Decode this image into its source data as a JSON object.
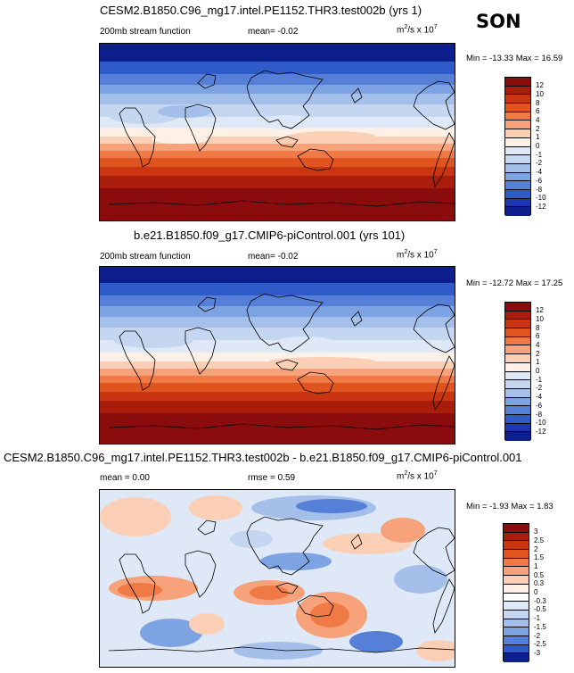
{
  "season": "SON",
  "panel_top": {
    "title": "CESM2.B1850.C96_mg17.intel.PE1152.THR3.test002b (yrs 1)",
    "left_label": "200mb stream function",
    "center_label": "mean=  -0.02",
    "units_base": "m",
    "units_exp1": "2",
    "units_mid": "/s x 10",
    "units_exp2": "7",
    "minmax": "Min = -13.33 Max =  16.59",
    "colorbar_labels": [
      "12",
      "10",
      "8",
      "6",
      "4",
      "2",
      "1",
      "0",
      "-1",
      "-2",
      "-4",
      "-6",
      "-8",
      "-10",
      "-12"
    ]
  },
  "panel_mid": {
    "title": "b.e21.B1850.f09_g17.CMIP6-piControl.001 (yrs 101)",
    "left_label": "200mb stream function",
    "center_label": "mean=  -0.02",
    "units_base": "m",
    "units_exp1": "2",
    "units_mid": "/s x 10",
    "units_exp2": "7",
    "minmax": "Min = -12.72 Max =  17.25",
    "colorbar_labels": [
      "12",
      "10",
      "8",
      "6",
      "4",
      "2",
      "1",
      "0",
      "-1",
      "-2",
      "-4",
      "-6",
      "-8",
      "-10",
      "-12"
    ]
  },
  "panel_diff": {
    "title": "CESM2.B1850.C96_mg17.intel.PE1152.THR3.test002b - b.e21.B1850.f09_g17.CMIP6-piControl.001",
    "left_label": "mean =  0.00",
    "center_label": "rmse =  0.59",
    "units_base": "m",
    "units_exp1": "2",
    "units_mid": "/s x 10",
    "units_exp2": "7",
    "minmax": "Min = -1.93 Max =  1.83",
    "colorbar_labels": [
      "3",
      "2.5",
      "2",
      "1.5",
      "1",
      "0.5",
      "0.3",
      "0",
      "-0.3",
      "-0.5",
      "-1",
      "-1.5",
      "-2",
      "-2.5",
      "-3"
    ]
  },
  "colors": {
    "stream_bins": [
      "#8b0c0c",
      "#a81d0c",
      "#c93510",
      "#e0541f",
      "#f07a45",
      "#f7a27a",
      "#fbcfb6",
      "#fdf0e6",
      "#dfe8f6",
      "#c5d6f0",
      "#a4c0ea",
      "#7ea3e2",
      "#5680d8",
      "#2e5bc8",
      "#1b36b0",
      "#0d1f8c"
    ],
    "diff_bins": [
      "#8b0c0c",
      "#a81d0c",
      "#c93510",
      "#e0541f",
      "#f07a45",
      "#f7a27a",
      "#fbcfb6",
      "#fdf0e6",
      "#ffffff",
      "#dfe8f6",
      "#c5d6f0",
      "#a4c0ea",
      "#7ea3e2",
      "#5680d8",
      "#2e5bc8",
      "#0d1f8c"
    ]
  }
}
